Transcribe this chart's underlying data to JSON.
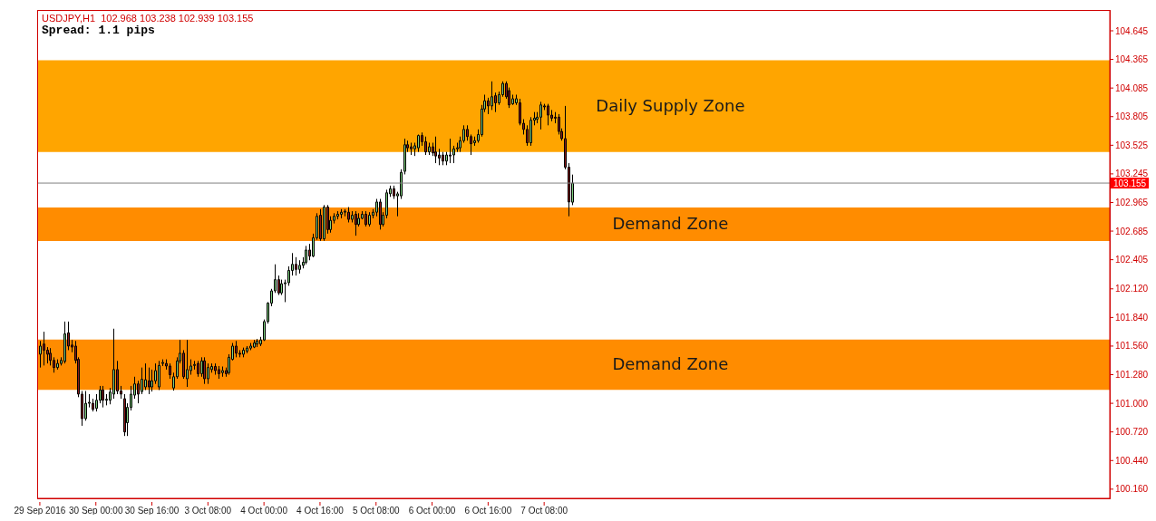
{
  "chart_data": {
    "type": "candlestick",
    "title": "USDJPY,H1  102.968 103.238 102.939 103.155",
    "annotations": [
      "Spread: 1.1 pips"
    ],
    "categories": [
      "29 Sep 2016",
      null,
      null,
      null,
      null,
      null,
      null,
      null,
      null,
      null,
      null,
      null,
      null,
      null,
      null,
      null,
      "30 Sep 00:00",
      null,
      null,
      null,
      null,
      null,
      null,
      null,
      null,
      null,
      null,
      null,
      null,
      null,
      null,
      null,
      "30 Sep 16:00",
      null,
      null,
      null,
      null,
      null,
      null,
      null,
      null,
      null,
      null,
      null,
      null,
      null,
      null,
      null,
      "3 Oct 08:00",
      null,
      null,
      null,
      null,
      null,
      null,
      null,
      null,
      null,
      null,
      null,
      null,
      null,
      null,
      null,
      "4 Oct 00:00",
      null,
      null,
      null,
      null,
      null,
      null,
      null,
      null,
      null,
      null,
      null,
      null,
      null,
      null,
      null,
      "4 Oct 16:00",
      null,
      null,
      null,
      null,
      null,
      null,
      null,
      null,
      null,
      null,
      null,
      null,
      null,
      null,
      null,
      "5 Oct 08:00",
      null,
      null,
      null,
      null,
      null,
      null,
      null,
      null,
      null,
      null,
      null,
      null,
      null,
      null,
      null,
      "6 Oct 00:00",
      null,
      null,
      null,
      null,
      null,
      null,
      null,
      null,
      null,
      null,
      null,
      null,
      null,
      null,
      null,
      "6 Oct 16:00",
      null,
      null,
      null,
      null,
      null,
      null,
      null,
      null,
      null,
      null,
      null,
      null,
      null,
      null,
      null,
      "7 Oct 08:00",
      null,
      null,
      null,
      null,
      null,
      null,
      null,
      null,
      null,
      null,
      null,
      null,
      null,
      null,
      null,
      null,
      null,
      null,
      null,
      null,
      null,
      null,
      null,
      null,
      null,
      null,
      null,
      null,
      null,
      null,
      null,
      null,
      null,
      null,
      null,
      null,
      null,
      null,
      null,
      null,
      null,
      null,
      null,
      null,
      null,
      null,
      null,
      null,
      null,
      null,
      null,
      null,
      null,
      null,
      null,
      null,
      null,
      null,
      null,
      null,
      null,
      null,
      null,
      null,
      null,
      null,
      null,
      null,
      null,
      null,
      null,
      null,
      null,
      null,
      null,
      null,
      null,
      null,
      null,
      null,
      null,
      null,
      null,
      null,
      null,
      null,
      null,
      null,
      null,
      null,
      null,
      null,
      null,
      null,
      null,
      null,
      null,
      null,
      null,
      null,
      null,
      null,
      null,
      null,
      null,
      null,
      null,
      null,
      null,
      null,
      null,
      null,
      null,
      null,
      null,
      null,
      null,
      null,
      null,
      null,
      null,
      null,
      null,
      null,
      null,
      null,
      null,
      null,
      null,
      null,
      null,
      null,
      null,
      null,
      null,
      null,
      null,
      null,
      null,
      null,
      null,
      null,
      null,
      null,
      null,
      null,
      null,
      null,
      null,
      null,
      null,
      null,
      null,
      null,
      null,
      null,
      null,
      null,
      null,
      null,
      null
    ],
    "ohlc": [
      [
        101.48,
        101.61,
        101.35,
        101.56
      ],
      [
        101.58,
        101.7,
        101.37,
        101.52
      ],
      [
        101.52,
        101.55,
        101.39,
        101.48
      ],
      [
        101.49,
        101.54,
        101.37,
        101.42
      ],
      [
        101.42,
        101.45,
        101.3,
        101.35
      ],
      [
        101.35,
        101.43,
        101.33,
        101.39
      ],
      [
        101.39,
        101.45,
        101.37,
        101.42
      ],
      [
        101.41,
        101.8,
        101.39,
        101.68
      ],
      [
        101.69,
        101.8,
        101.52,
        101.56
      ],
      [
        101.57,
        101.62,
        101.5,
        101.55
      ],
      [
        101.56,
        101.61,
        101.39,
        101.42
      ],
      [
        101.43,
        101.45,
        101.06,
        101.09
      ],
      [
        101.09,
        101.12,
        100.78,
        100.85
      ],
      [
        100.85,
        101.12,
        100.83,
        101.0
      ],
      [
        101.0,
        101.09,
        100.96,
        101.01
      ],
      [
        101.0,
        101.045,
        100.92,
        100.94
      ],
      [
        100.95,
        101.09,
        100.92,
        101.03
      ],
      [
        101.03,
        101.17,
        101.0,
        101.13
      ],
      [
        101.13,
        101.17,
        100.96,
        101.03
      ],
      [
        101.03,
        101.09,
        100.98,
        101.04
      ],
      [
        101.03,
        101.15,
        100.99,
        101.11
      ],
      [
        101.09,
        101.73,
        101.045,
        101.33
      ],
      [
        101.33,
        101.415,
        101.09,
        101.12
      ],
      [
        101.12,
        101.17,
        101.045,
        101.09
      ],
      [
        101.045,
        101.09,
        100.68,
        100.72
      ],
      [
        100.81,
        101.0,
        100.68,
        100.96
      ],
      [
        100.96,
        101.17,
        100.93,
        101.09
      ],
      [
        101.08,
        101.26,
        101.045,
        101.19
      ],
      [
        101.19,
        101.22,
        101.0,
        101.09
      ],
      [
        101.115,
        101.35,
        101.09,
        101.235
      ],
      [
        101.16,
        101.39,
        101.13,
        101.23
      ],
      [
        101.22,
        101.35,
        101.09,
        101.16
      ],
      [
        101.16,
        101.33,
        101.115,
        101.22
      ],
      [
        101.22,
        101.39,
        101.19,
        101.32
      ],
      [
        101.16,
        101.415,
        101.13,
        101.37
      ],
      [
        101.39,
        101.43,
        101.365,
        101.4
      ],
      [
        101.39,
        101.43,
        101.33,
        101.365
      ],
      [
        101.365,
        101.39,
        101.24,
        101.28
      ],
      [
        101.15,
        101.3,
        101.124,
        101.26
      ],
      [
        101.26,
        101.45,
        101.24,
        101.415
      ],
      [
        101.415,
        101.62,
        101.39,
        101.49
      ],
      [
        101.49,
        101.52,
        101.24,
        101.26
      ],
      [
        101.24,
        101.62,
        101.16,
        101.33
      ],
      [
        101.32,
        101.43,
        101.28,
        101.365
      ],
      [
        101.37,
        101.415,
        101.33,
        101.38
      ],
      [
        101.39,
        101.415,
        101.26,
        101.29
      ],
      [
        101.29,
        101.45,
        101.26,
        101.415
      ],
      [
        101.415,
        101.45,
        101.19,
        101.24
      ],
      [
        101.24,
        101.39,
        101.19,
        101.35
      ],
      [
        101.33,
        101.39,
        101.3,
        101.36
      ],
      [
        101.36,
        101.39,
        101.28,
        101.32
      ],
      [
        101.33,
        101.365,
        101.24,
        101.29
      ],
      [
        101.3,
        101.36,
        101.26,
        101.32
      ],
      [
        101.32,
        101.35,
        101.26,
        101.29
      ],
      [
        101.3,
        101.48,
        101.28,
        101.45
      ],
      [
        101.43,
        101.59,
        101.42,
        101.56
      ],
      [
        101.56,
        101.61,
        101.45,
        101.49
      ],
      [
        101.49,
        101.52,
        101.45,
        101.48
      ],
      [
        101.48,
        101.545,
        101.45,
        101.52
      ],
      [
        101.51,
        101.56,
        101.49,
        101.54
      ],
      [
        101.54,
        101.59,
        101.52,
        101.56
      ],
      [
        101.55,
        101.62,
        101.54,
        101.59
      ],
      [
        101.58,
        101.63,
        101.55,
        101.61
      ],
      [
        101.58,
        101.65,
        101.56,
        101.62
      ],
      [
        101.62,
        101.82,
        101.61,
        101.8
      ],
      [
        101.8,
        101.99,
        101.78,
        101.98
      ],
      [
        101.98,
        102.12,
        101.95,
        102.1
      ],
      [
        102.1,
        102.36,
        102.08,
        102.21
      ],
      [
        102.21,
        102.25,
        102.06,
        102.08
      ],
      [
        102.08,
        102.21,
        102.06,
        102.17
      ],
      [
        102.17,
        102.21,
        101.99,
        102.18
      ],
      [
        102.18,
        102.34,
        102.15,
        102.3
      ],
      [
        102.3,
        102.47,
        102.25,
        102.36
      ],
      [
        102.36,
        102.43,
        102.25,
        102.31
      ],
      [
        102.31,
        102.4,
        102.27,
        102.35
      ],
      [
        102.35,
        102.43,
        102.32,
        102.38
      ],
      [
        102.38,
        102.54,
        102.36,
        102.5
      ],
      [
        102.5,
        102.56,
        102.4,
        102.44
      ],
      [
        102.44,
        102.66,
        102.43,
        102.62
      ],
      [
        102.62,
        102.86,
        102.6,
        102.83
      ],
      [
        102.84,
        102.9,
        102.59,
        102.61
      ],
      [
        102.61,
        102.94,
        102.59,
        102.92
      ],
      [
        102.92,
        102.94,
        102.66,
        102.7
      ],
      [
        102.7,
        102.83,
        102.67,
        102.79
      ],
      [
        102.79,
        102.86,
        102.76,
        102.83
      ],
      [
        102.83,
        102.88,
        102.8,
        102.85
      ],
      [
        102.85,
        102.9,
        102.81,
        102.87
      ],
      [
        102.87,
        102.9,
        102.83,
        102.88
      ],
      [
        102.87,
        102.92,
        102.77,
        102.8
      ],
      [
        102.8,
        102.88,
        102.77,
        102.84
      ],
      [
        102.85,
        102.88,
        102.64,
        102.75
      ],
      [
        102.75,
        102.86,
        102.73,
        102.81
      ],
      [
        102.81,
        102.88,
        102.8,
        102.85
      ],
      [
        102.85,
        102.88,
        102.73,
        102.75
      ],
      [
        102.75,
        102.87,
        102.73,
        102.84
      ],
      [
        102.84,
        102.9,
        102.81,
        102.87
      ],
      [
        102.87,
        103.0,
        102.83,
        102.97
      ],
      [
        102.97,
        103.0,
        102.7,
        102.75
      ],
      [
        102.75,
        102.87,
        102.73,
        102.84
      ],
      [
        102.84,
        103.09,
        102.81,
        103.06
      ],
      [
        103.05,
        103.13,
        103.02,
        103.1
      ],
      [
        103.1,
        103.13,
        103.0,
        103.03
      ],
      [
        103.03,
        103.07,
        102.83,
        103.05
      ],
      [
        103.03,
        103.29,
        103.0,
        103.26
      ],
      [
        103.27,
        103.59,
        103.24,
        103.53
      ],
      [
        103.53,
        103.57,
        103.46,
        103.5
      ],
      [
        103.51,
        103.55,
        103.43,
        103.49
      ],
      [
        103.49,
        103.55,
        103.42,
        103.52
      ],
      [
        103.5,
        103.63,
        103.46,
        103.62
      ],
      [
        103.62,
        103.65,
        103.52,
        103.56
      ],
      [
        103.56,
        103.61,
        103.43,
        103.46
      ],
      [
        103.46,
        103.55,
        103.43,
        103.51
      ],
      [
        103.51,
        103.55,
        103.42,
        103.45
      ],
      [
        103.46,
        103.61,
        103.35,
        103.42
      ],
      [
        103.43,
        103.49,
        103.33,
        103.4
      ],
      [
        103.43,
        103.46,
        103.33,
        103.37
      ],
      [
        103.37,
        103.46,
        103.33,
        103.43
      ],
      [
        103.43,
        103.59,
        103.35,
        103.42
      ],
      [
        103.43,
        103.52,
        103.35,
        103.49
      ],
      [
        103.49,
        103.55,
        103.46,
        103.5
      ],
      [
        103.5,
        103.61,
        103.46,
        103.57
      ],
      [
        103.57,
        103.72,
        103.55,
        103.68
      ],
      [
        103.68,
        103.72,
        103.57,
        103.61
      ],
      [
        103.61,
        103.63,
        103.43,
        103.54
      ],
      [
        103.55,
        103.61,
        103.52,
        103.57
      ],
      [
        103.57,
        103.68,
        103.55,
        103.63
      ],
      [
        103.63,
        103.92,
        103.61,
        103.88
      ],
      [
        103.88,
        104.02,
        103.85,
        103.96
      ],
      [
        103.96,
        103.99,
        103.83,
        103.91
      ],
      [
        103.91,
        104.15,
        103.87,
        104.0
      ],
      [
        104.01,
        104.04,
        103.85,
        103.94
      ],
      [
        103.94,
        104.05,
        103.92,
        104.02
      ],
      [
        104.02,
        104.15,
        104.0,
        104.13
      ],
      [
        104.13,
        104.15,
        103.98,
        104.0
      ],
      [
        104.06,
        104.09,
        103.89,
        103.92
      ],
      [
        103.93,
        104.02,
        103.92,
        103.98
      ],
      [
        103.94,
        104.02,
        103.92,
        103.98
      ],
      [
        103.94,
        103.98,
        103.72,
        103.74
      ],
      [
        103.74,
        103.78,
        103.63,
        103.68
      ],
      [
        103.68,
        103.72,
        103.52,
        103.55
      ],
      [
        103.55,
        103.8,
        103.52,
        103.77
      ],
      [
        103.77,
        103.85,
        103.72,
        103.79
      ],
      [
        103.78,
        103.85,
        103.74,
        103.8
      ],
      [
        103.8,
        103.95,
        103.68,
        103.92
      ],
      [
        103.91,
        103.93,
        103.87,
        103.9
      ],
      [
        103.91,
        103.93,
        103.72,
        103.82
      ],
      [
        103.82,
        103.87,
        103.76,
        103.79
      ],
      [
        103.8,
        103.85,
        103.74,
        103.79
      ],
      [
        103.8,
        103.83,
        103.63,
        103.66
      ],
      [
        103.66,
        103.69,
        103.57,
        103.59
      ],
      [
        103.59,
        103.91,
        103.29,
        103.31
      ],
      [
        103.31,
        103.35,
        102.83,
        102.97
      ],
      [
        102.968,
        103.238,
        102.939,
        103.155
      ],
      null,
      null,
      null,
      null,
      null,
      null,
      null,
      null,
      null,
      null,
      null,
      null,
      null,
      null,
      null,
      null,
      null,
      null,
      null,
      null,
      null,
      null,
      null,
      null,
      null,
      null,
      null,
      null,
      null,
      null,
      null,
      null,
      null,
      null,
      null,
      null,
      null,
      null,
      null,
      null,
      null,
      null,
      null,
      null,
      null,
      null,
      null,
      null,
      null,
      null,
      null,
      null,
      null,
      null,
      null,
      null,
      null,
      null,
      null,
      null,
      null,
      null,
      null,
      null,
      null,
      null,
      null,
      null,
      null,
      null,
      null,
      null,
      null,
      null,
      null,
      null,
      null,
      null,
      null,
      null,
      null,
      null,
      null,
      null,
      null,
      null,
      null,
      null,
      null,
      null,
      null,
      null,
      null,
      null,
      null,
      null,
      null,
      null,
      null,
      null,
      null,
      null,
      null,
      null,
      null,
      null,
      null,
      null,
      null,
      null,
      null,
      null,
      null,
      null,
      null,
      null,
      null,
      null,
      null,
      null,
      null,
      null,
      null,
      null,
      null,
      null,
      null,
      null,
      null,
      null,
      null,
      null,
      null,
      null,
      null,
      null,
      null,
      null,
      null,
      null,
      null,
      null,
      null,
      null,
      null,
      null,
      null,
      null,
      null,
      null,
      null,
      null,
      null
    ],
    "ylim": [
      100.07,
      104.84
    ],
    "yticks": [
      {
        "value": 100.16,
        "label": "100.160"
      },
      {
        "value": 100.44,
        "label": "100.440"
      },
      {
        "value": 100.72,
        "label": "100.720"
      },
      {
        "value": 101,
        "label": "101.000"
      },
      {
        "value": 101.28,
        "label": "101.280"
      },
      {
        "value": 101.56,
        "label": "101.560"
      },
      {
        "value": 101.84,
        "label": "101.840"
      },
      {
        "value": 102.12,
        "label": "102.120"
      },
      102.405,
      102.685,
      102.965,
      103.245,
      103.525,
      103.805,
      104.085,
      104.365,
      104.645
    ],
    "ref_lines": [
      {
        "axis": "y",
        "value": 103.155,
        "label": "103.155",
        "color": "#808080"
      }
    ],
    "bands": [
      {
        "axis": "y",
        "from": 103.46,
        "to": 104.356,
        "label": "Daily Supply Zone",
        "color": "#ffa500"
      },
      {
        "axis": "y",
        "from": 102.589,
        "to": 102.917,
        "label": "Demand Zone",
        "color": "#ff8c00"
      },
      {
        "axis": "y",
        "from": 101.132,
        "to": 101.624,
        "label": "Demand Zone",
        "color": "#ff8c00"
      }
    ]
  }
}
